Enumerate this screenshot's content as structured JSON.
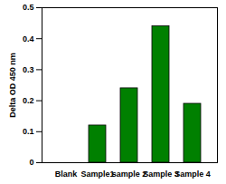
{
  "chart_data": {
    "type": "bar",
    "y_label": "Delta OD 450 nm",
    "categories": [
      "Blank",
      "Sample1",
      "sample 2",
      "Sample 3",
      "Sample 4"
    ],
    "values": [
      0,
      0.12,
      0.24,
      0.44,
      0.19
    ],
    "color": "#008000",
    "ylim": [
      0,
      0.5
    ],
    "yticks": [
      0,
      0.1,
      0.2,
      0.3,
      0.4,
      0.5
    ],
    "grid": false
  }
}
